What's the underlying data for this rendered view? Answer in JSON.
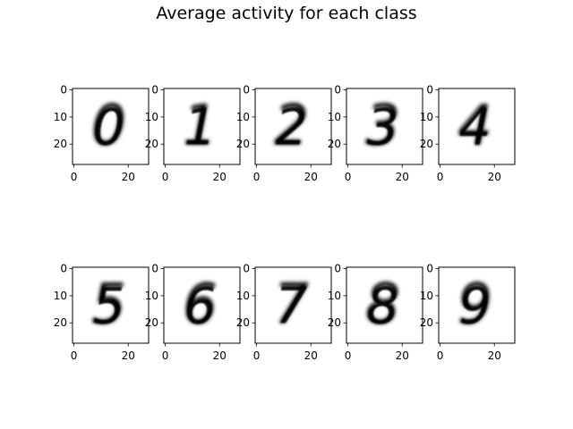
{
  "figure": {
    "title": "Average activity for each class"
  },
  "chart_data": {
    "type": "heatmap",
    "title": "Average activity for each class",
    "image_size": [
      28,
      28
    ],
    "colormap": "gray_r",
    "grid": false,
    "xticks": [
      0,
      20
    ],
    "yticks": [
      0,
      10,
      20
    ],
    "xlim": [
      -0.5,
      27.5
    ],
    "ylim": [
      27.5,
      -0.5
    ],
    "panels": [
      {
        "label": "0",
        "glyph": "0"
      },
      {
        "label": "1",
        "glyph": "1"
      },
      {
        "label": "2",
        "glyph": "2"
      },
      {
        "label": "3",
        "glyph": "3"
      },
      {
        "label": "4",
        "glyph": "4"
      },
      {
        "label": "5",
        "glyph": "5"
      },
      {
        "label": "6",
        "glyph": "6"
      },
      {
        "label": "7",
        "glyph": "7"
      },
      {
        "label": "8",
        "glyph": "8"
      },
      {
        "label": "9",
        "glyph": "9"
      }
    ]
  }
}
